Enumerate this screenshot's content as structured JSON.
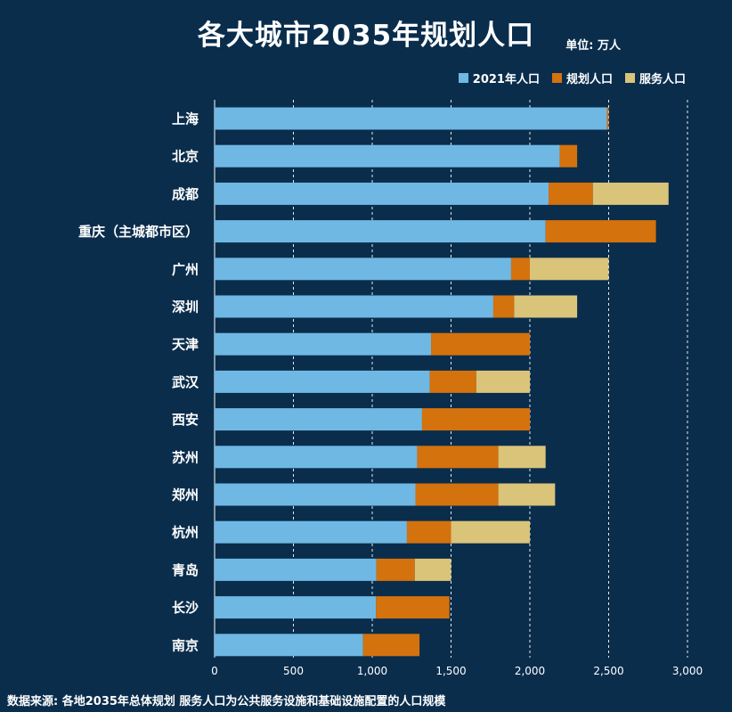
{
  "unit": "单位: 万人",
  "source": "数据来源: 各地2035年总体规划   服务人口为公共服务设施和基础设施配置的人口规模",
  "colors": {
    "background": "#0a2d4c",
    "pop2021": "#6fb8e4",
    "planned": "#d4720e",
    "service": "#d9c47a",
    "grid": "#ffffff"
  },
  "chart_data": {
    "type": "bar",
    "orientation": "horizontal",
    "stacked": true,
    "title": "各大城市2035年规划人口",
    "xlabel": "",
    "ylabel": "",
    "xlim": [
      0,
      3000
    ],
    "xticks": [
      0,
      500,
      1000,
      1500,
      2000,
      2500,
      3000
    ],
    "xtick_labels": [
      "0",
      "500",
      "1,000",
      "1,500",
      "2,000",
      "2,500",
      "3,000"
    ],
    "grid": "vertical dashed",
    "legend_position": "top-right",
    "categories": [
      "上海",
      "北京",
      "成都",
      "重庆（主城都市区）",
      "广州",
      "深圳",
      "天津",
      "武汉",
      "西安",
      "苏州",
      "郑州",
      "杭州",
      "青岛",
      "长沙",
      "南京"
    ],
    "series": [
      {
        "name": "2021年人口",
        "values": [
          2489,
          2189,
          2119,
          2100,
          1881,
          1768,
          1373,
          1365,
          1316,
          1285,
          1274,
          1220,
          1026,
          1024,
          942
        ]
      },
      {
        "name": "规划人口",
        "values": [
          11,
          111,
          281,
          700,
          119,
          132,
          627,
          295,
          684,
          515,
          526,
          280,
          244,
          466,
          358
        ]
      },
      {
        "name": "服务人口",
        "values": [
          0,
          0,
          480,
          0,
          500,
          400,
          0,
          340,
          0,
          300,
          360,
          500,
          230,
          0,
          0
        ]
      }
    ]
  }
}
